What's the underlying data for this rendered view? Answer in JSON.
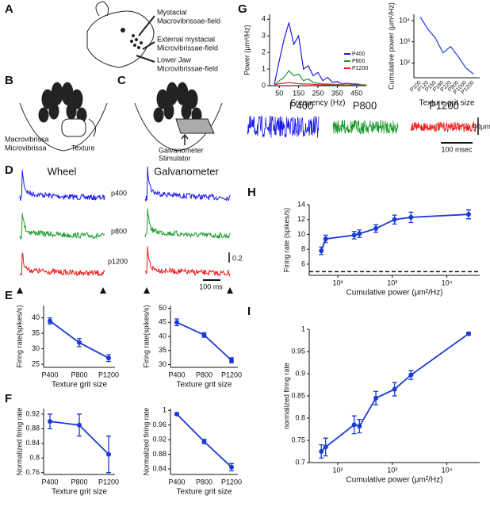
{
  "panel_letters": [
    "A",
    "B",
    "C",
    "D",
    "E",
    "F",
    "G",
    "H",
    "I"
  ],
  "schematic_a": {
    "labels": [
      [
        "Mystacial",
        "Macrovibrissae-field"
      ],
      [
        "External mystacial",
        "Microvibrissae-field"
      ],
      [
        "Lower Jaw",
        "Microvibrissae-field"
      ]
    ]
  },
  "schematic_b": {
    "legend": [
      "Macrovibrissa",
      "Microvibrissa"
    ],
    "label": "Texture"
  },
  "schematic_c": {
    "label": [
      "Galvanometer",
      "Stimulator"
    ]
  },
  "panel_d": {
    "titles": [
      "Wheel",
      "Galvanometer"
    ],
    "traces": [
      {
        "name": "p400",
        "color": "#1a1aee"
      },
      {
        "name": "p800",
        "color": "#1a9a2a"
      },
      {
        "name": "p1200",
        "color": "#ee1a1a"
      }
    ],
    "scale_y": "0.2",
    "scale_x": "100 ms"
  },
  "panel_g_traces": {
    "scale_y": "40μm",
    "scale_x": "100 msec"
  },
  "chart_data": [
    {
      "type": "line",
      "categories": [
        "P400",
        "P800",
        "P1200"
      ],
      "values": [
        39,
        32,
        27
      ],
      "errors": [
        1,
        1.3,
        1.1
      ],
      "color": "#1a3ad6",
      "ylim": [
        24,
        44
      ],
      "yticks": [
        25,
        30,
        35,
        40
      ],
      "ylabel": "Firing rate(spikes/s)",
      "xlabel": "Texture grit size",
      "markers": true
    },
    {
      "type": "line",
      "categories": [
        "P400",
        "P800",
        "P1200"
      ],
      "values": [
        45,
        40.5,
        31.5
      ],
      "errors": [
        1.2,
        0.8,
        0.9
      ],
      "color": "#1a3ad6",
      "ylim": [
        29,
        51
      ],
      "yticks": [
        30,
        35,
        40,
        45,
        50
      ],
      "ylabel": "Firing rate(spikes/s)",
      "xlabel": "Texture grit size",
      "markers": true
    },
    {
      "type": "line",
      "categories": [
        "P400",
        "P800",
        "P1200"
      ],
      "values": [
        0.9,
        0.89,
        0.81
      ],
      "errors": [
        0.02,
        0.03,
        0.05
      ],
      "color": "#1a3ad6",
      "ylim": [
        0.755,
        0.935
      ],
      "yticks": [
        0.76,
        0.8,
        0.84,
        0.88,
        0.92
      ],
      "ylabel": "Normalized firing rate",
      "xlabel": "Texture grit size",
      "markers": true
    },
    {
      "type": "line",
      "categories": [
        "P400",
        "P800",
        "P1200"
      ],
      "values": [
        0.99,
        0.915,
        0.845
      ],
      "errors": [
        0.003,
        0.006,
        0.01
      ],
      "color": "#1a3ad6",
      "ylim": [
        0.825,
        1.005
      ],
      "yticks": [
        0.84,
        0.88,
        0.92,
        0.96,
        1
      ],
      "ylabel": "Normalized firing rate",
      "xlabel": "Texture grit size",
      "markers": true
    },
    {
      "type": "line",
      "x": [
        25,
        50,
        75,
        100,
        125,
        150,
        175,
        200,
        225,
        250,
        275,
        300,
        325,
        350,
        375,
        400,
        425,
        450,
        475,
        500
      ],
      "series": [
        {
          "name": "P400",
          "color": "#1a1aee",
          "values": [
            0.1,
            1.5,
            2.8,
            3.8,
            2.5,
            3.0,
            1.0,
            1.2,
            0.6,
            0.8,
            0.3,
            0.5,
            0.2,
            0.25,
            0.1,
            0.15,
            0.1,
            0.1,
            0.05,
            0.05
          ]
        },
        {
          "name": "P800",
          "color": "#1a9a2a",
          "values": [
            0.05,
            0.3,
            0.5,
            0.9,
            0.6,
            0.7,
            0.3,
            0.4,
            0.2,
            0.15,
            0.1,
            0.1,
            0.08,
            0.08,
            0.05,
            0.05,
            0.05,
            0.05,
            0.05,
            0.05
          ]
        },
        {
          "name": "P1200",
          "color": "#ee1a1a",
          "values": [
            0.05,
            0.12,
            0.15,
            0.2,
            0.15,
            0.12,
            0.1,
            0.1,
            0.08,
            0.06,
            0.05,
            0.05,
            0.05,
            0.04,
            0.04,
            0.04,
            0.03,
            0.03,
            0.03,
            0.03
          ]
        }
      ],
      "xlim": [
        0,
        500
      ],
      "xticks": [
        50,
        150,
        250,
        350,
        450
      ],
      "ylim": [
        0,
        4.3
      ],
      "yticks": [
        0,
        1,
        2,
        3,
        4
      ],
      "ylabel": "Power (μm²/Hz)",
      "xlabel": "Frequency (Hz)",
      "legend": "upper right"
    },
    {
      "type": "line",
      "categories": [
        "P100",
        "P120",
        "P150",
        "P180",
        "P220",
        "P800",
        "P1000",
        "P1200"
      ],
      "values": [
        15000,
        4000,
        1500,
        300,
        600,
        200,
        60,
        30
      ],
      "color": "#1a3ad6",
      "ylog": true,
      "ylim": [
        20,
        20000
      ],
      "yticks": [
        {
          "value": 100,
          "label": "10²"
        },
        {
          "value": 1000,
          "label": "10³"
        },
        {
          "value": 10000,
          "label": "10⁴"
        }
      ],
      "ylabel": "Cumulative power (μm²/Hz)",
      "xlabel": "Texture grit size",
      "rotate_labels": true
    },
    {
      "type": "line",
      "x": [
        50,
        60,
        200,
        250,
        500,
        1100,
        2200,
        25000
      ],
      "values": [
        7.8,
        9.4,
        9.9,
        10.1,
        10.8,
        12.0,
        12.3,
        12.7
      ],
      "errors": [
        0.5,
        0.5,
        0.5,
        0.5,
        0.5,
        0.6,
        0.7,
        0.6
      ],
      "color": "#1a3ad6",
      "xlog": true,
      "markers": true,
      "baseline": 5,
      "xlim": [
        30,
        40000
      ],
      "xticks": [
        {
          "value": 100,
          "label": "10²"
        },
        {
          "value": 1000,
          "label": "10³"
        },
        {
          "value": 10000,
          "label": "10⁴"
        }
      ],
      "ylim": [
        4.5,
        14
      ],
      "yticks": [
        6,
        8,
        10,
        12,
        14
      ],
      "ylabel": "Firing rate (spikes/s)",
      "xlabel": "Cumulative power (μm²/Hz)"
    },
    {
      "type": "line",
      "x": [
        50,
        60,
        200,
        250,
        500,
        1100,
        2200,
        25000
      ],
      "values": [
        0.725,
        0.735,
        0.785,
        0.782,
        0.845,
        0.865,
        0.897,
        0.99
      ],
      "errors": [
        0.015,
        0.02,
        0.02,
        0.015,
        0.015,
        0.015,
        0.01,
        0.003
      ],
      "color": "#1a3ad6",
      "xlog": true,
      "markers": true,
      "xlim": [
        30,
        40000
      ],
      "xticks": [
        {
          "value": 100,
          "label": "10²"
        },
        {
          "value": 1000,
          "label": "10³"
        },
        {
          "value": 10000,
          "label": "10⁴"
        }
      ],
      "ylim": [
        0.7,
        1
      ],
      "yticks": [
        0.7,
        0.75,
        0.8,
        0.85,
        0.9,
        0.95,
        1
      ],
      "ylabel": "normalized firing rate",
      "xlabel": "Cumulative power (μm²/Hz)"
    }
  ]
}
